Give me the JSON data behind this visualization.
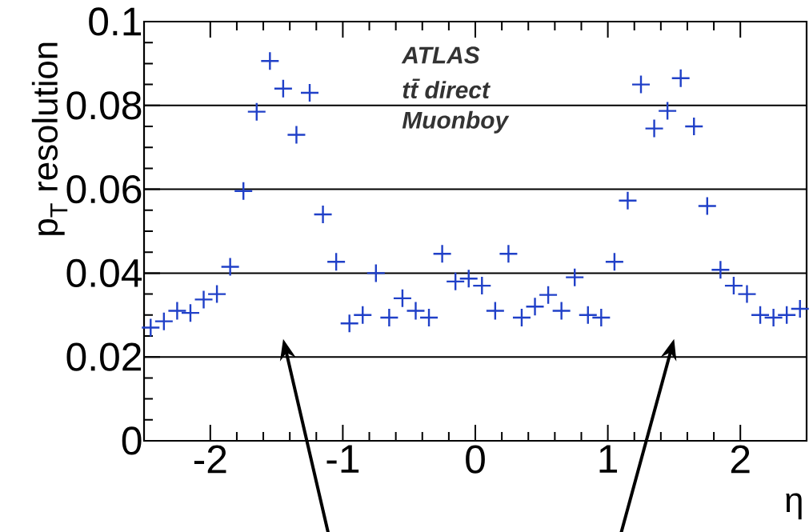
{
  "chart_data": {
    "type": "scatter",
    "x": [
      -2.45,
      -2.35,
      -2.25,
      -2.15,
      -2.05,
      -1.95,
      -1.85,
      -1.75,
      -1.65,
      -1.55,
      -1.45,
      -1.35,
      -1.25,
      -1.15,
      -1.05,
      -0.95,
      -0.85,
      -0.75,
      -0.65,
      -0.55,
      -0.45,
      -0.35,
      -0.25,
      -0.15,
      -0.05,
      0.05,
      0.15,
      0.25,
      0.35,
      0.45,
      0.55,
      0.65,
      0.75,
      0.85,
      0.95,
      1.05,
      1.15,
      1.25,
      1.35,
      1.45,
      1.55,
      1.65,
      1.75,
      1.85,
      1.95,
      2.05,
      2.15,
      2.25,
      2.35,
      2.45
    ],
    "values": [
      0.027,
      0.0285,
      0.031,
      0.0305,
      0.0337,
      0.035,
      0.0415,
      0.0596,
      0.0785,
      0.0906,
      0.084,
      0.073,
      0.083,
      0.054,
      0.0427,
      0.028,
      0.03,
      0.04,
      0.0294,
      0.034,
      0.031,
      0.0294,
      0.0446,
      0.038,
      0.0387,
      0.037,
      0.031,
      0.0446,
      0.0294,
      0.032,
      0.0348,
      0.031,
      0.039,
      0.03,
      0.0294,
      0.0427,
      0.0573,
      0.085,
      0.0745,
      0.0787,
      0.0865,
      0.075,
      0.056,
      0.0408,
      0.037,
      0.035,
      0.03,
      0.0294,
      0.03,
      0.0315
    ],
    "color": "#2040c8",
    "marker": "cross",
    "xlabel": "η",
    "ylabel": "p$_{T}$ resolution",
    "xlim": [
      -2.5,
      2.5
    ],
    "ylim": [
      0,
      0.1
    ],
    "xticks": [
      -2,
      -1,
      0,
      1,
      2
    ],
    "yticks": [
      0,
      0.02,
      0.04,
      0.06,
      0.08,
      0.1
    ],
    "grid": "y",
    "annotations": [
      "ATLAS",
      "tt̄ direct",
      "Muonboy"
    ]
  }
}
